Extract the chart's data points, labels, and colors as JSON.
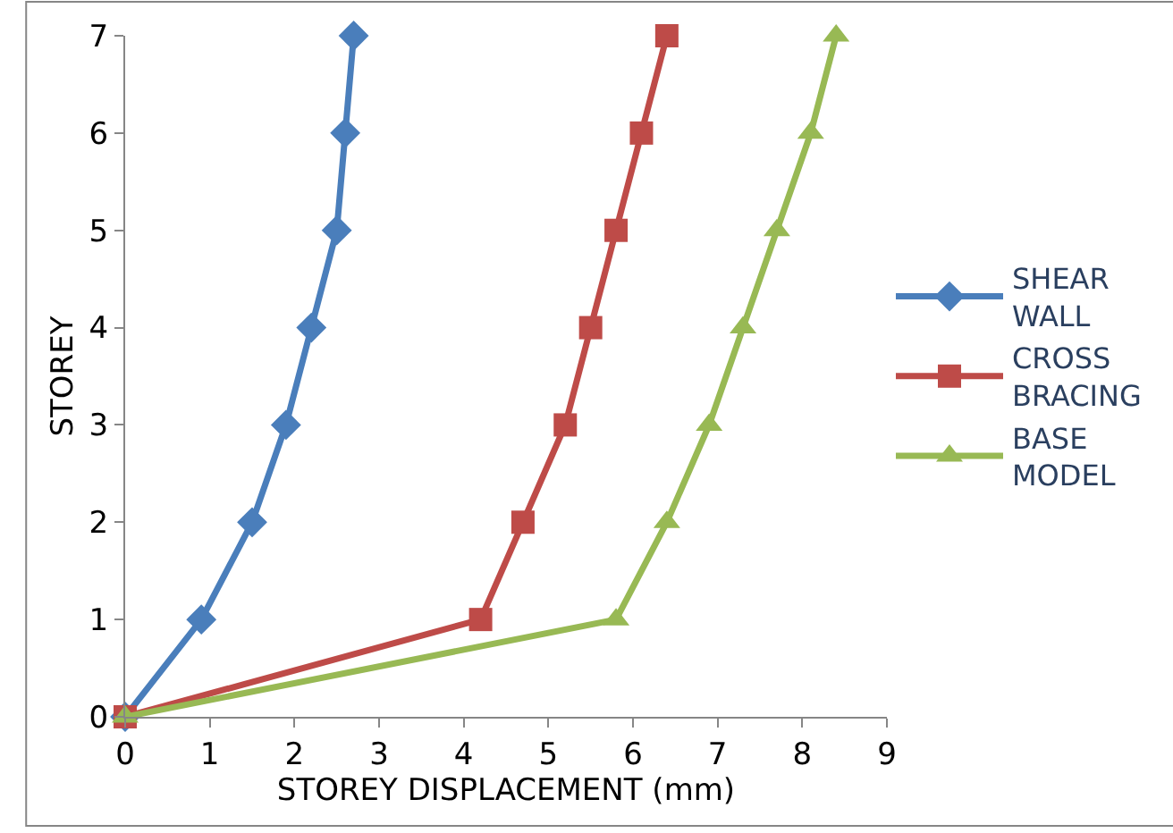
{
  "chart_data": {
    "type": "line",
    "xlabel": "STOREY DISPLACEMENT (mm)",
    "ylabel": "STOREY",
    "series": [
      {
        "name": "SHEAR WALL",
        "color": "#4a7ebb",
        "marker": "diamond",
        "x": [
          0,
          0.9,
          1.5,
          1.9,
          2.2,
          2.5,
          2.6,
          2.7
        ],
        "values": [
          0,
          1,
          2,
          3,
          4,
          5,
          6,
          7
        ]
      },
      {
        "name": "CROSS BRACING",
        "color": "#be4b48",
        "marker": "square",
        "x": [
          0,
          4.2,
          4.7,
          5.2,
          5.5,
          5.8,
          6.1,
          6.4
        ],
        "values": [
          0,
          1,
          2,
          3,
          4,
          5,
          6,
          7
        ]
      },
      {
        "name": "BASE MODEL",
        "color": "#98b954",
        "marker": "triangle",
        "x": [
          0,
          5.8,
          6.4,
          6.9,
          7.3,
          7.7,
          8.1,
          8.4
        ],
        "values": [
          0,
          1,
          2,
          3,
          4,
          5,
          6,
          7
        ]
      }
    ],
    "xlim": [
      0,
      9
    ],
    "xticks": [
      0,
      1,
      2,
      3,
      4,
      5,
      6,
      7,
      8,
      9
    ],
    "ylim": [
      0,
      7
    ],
    "yticks": [
      0,
      1,
      2,
      3,
      4,
      5,
      6,
      7
    ],
    "grid": false,
    "legend": "right",
    "line_style": "solid"
  }
}
